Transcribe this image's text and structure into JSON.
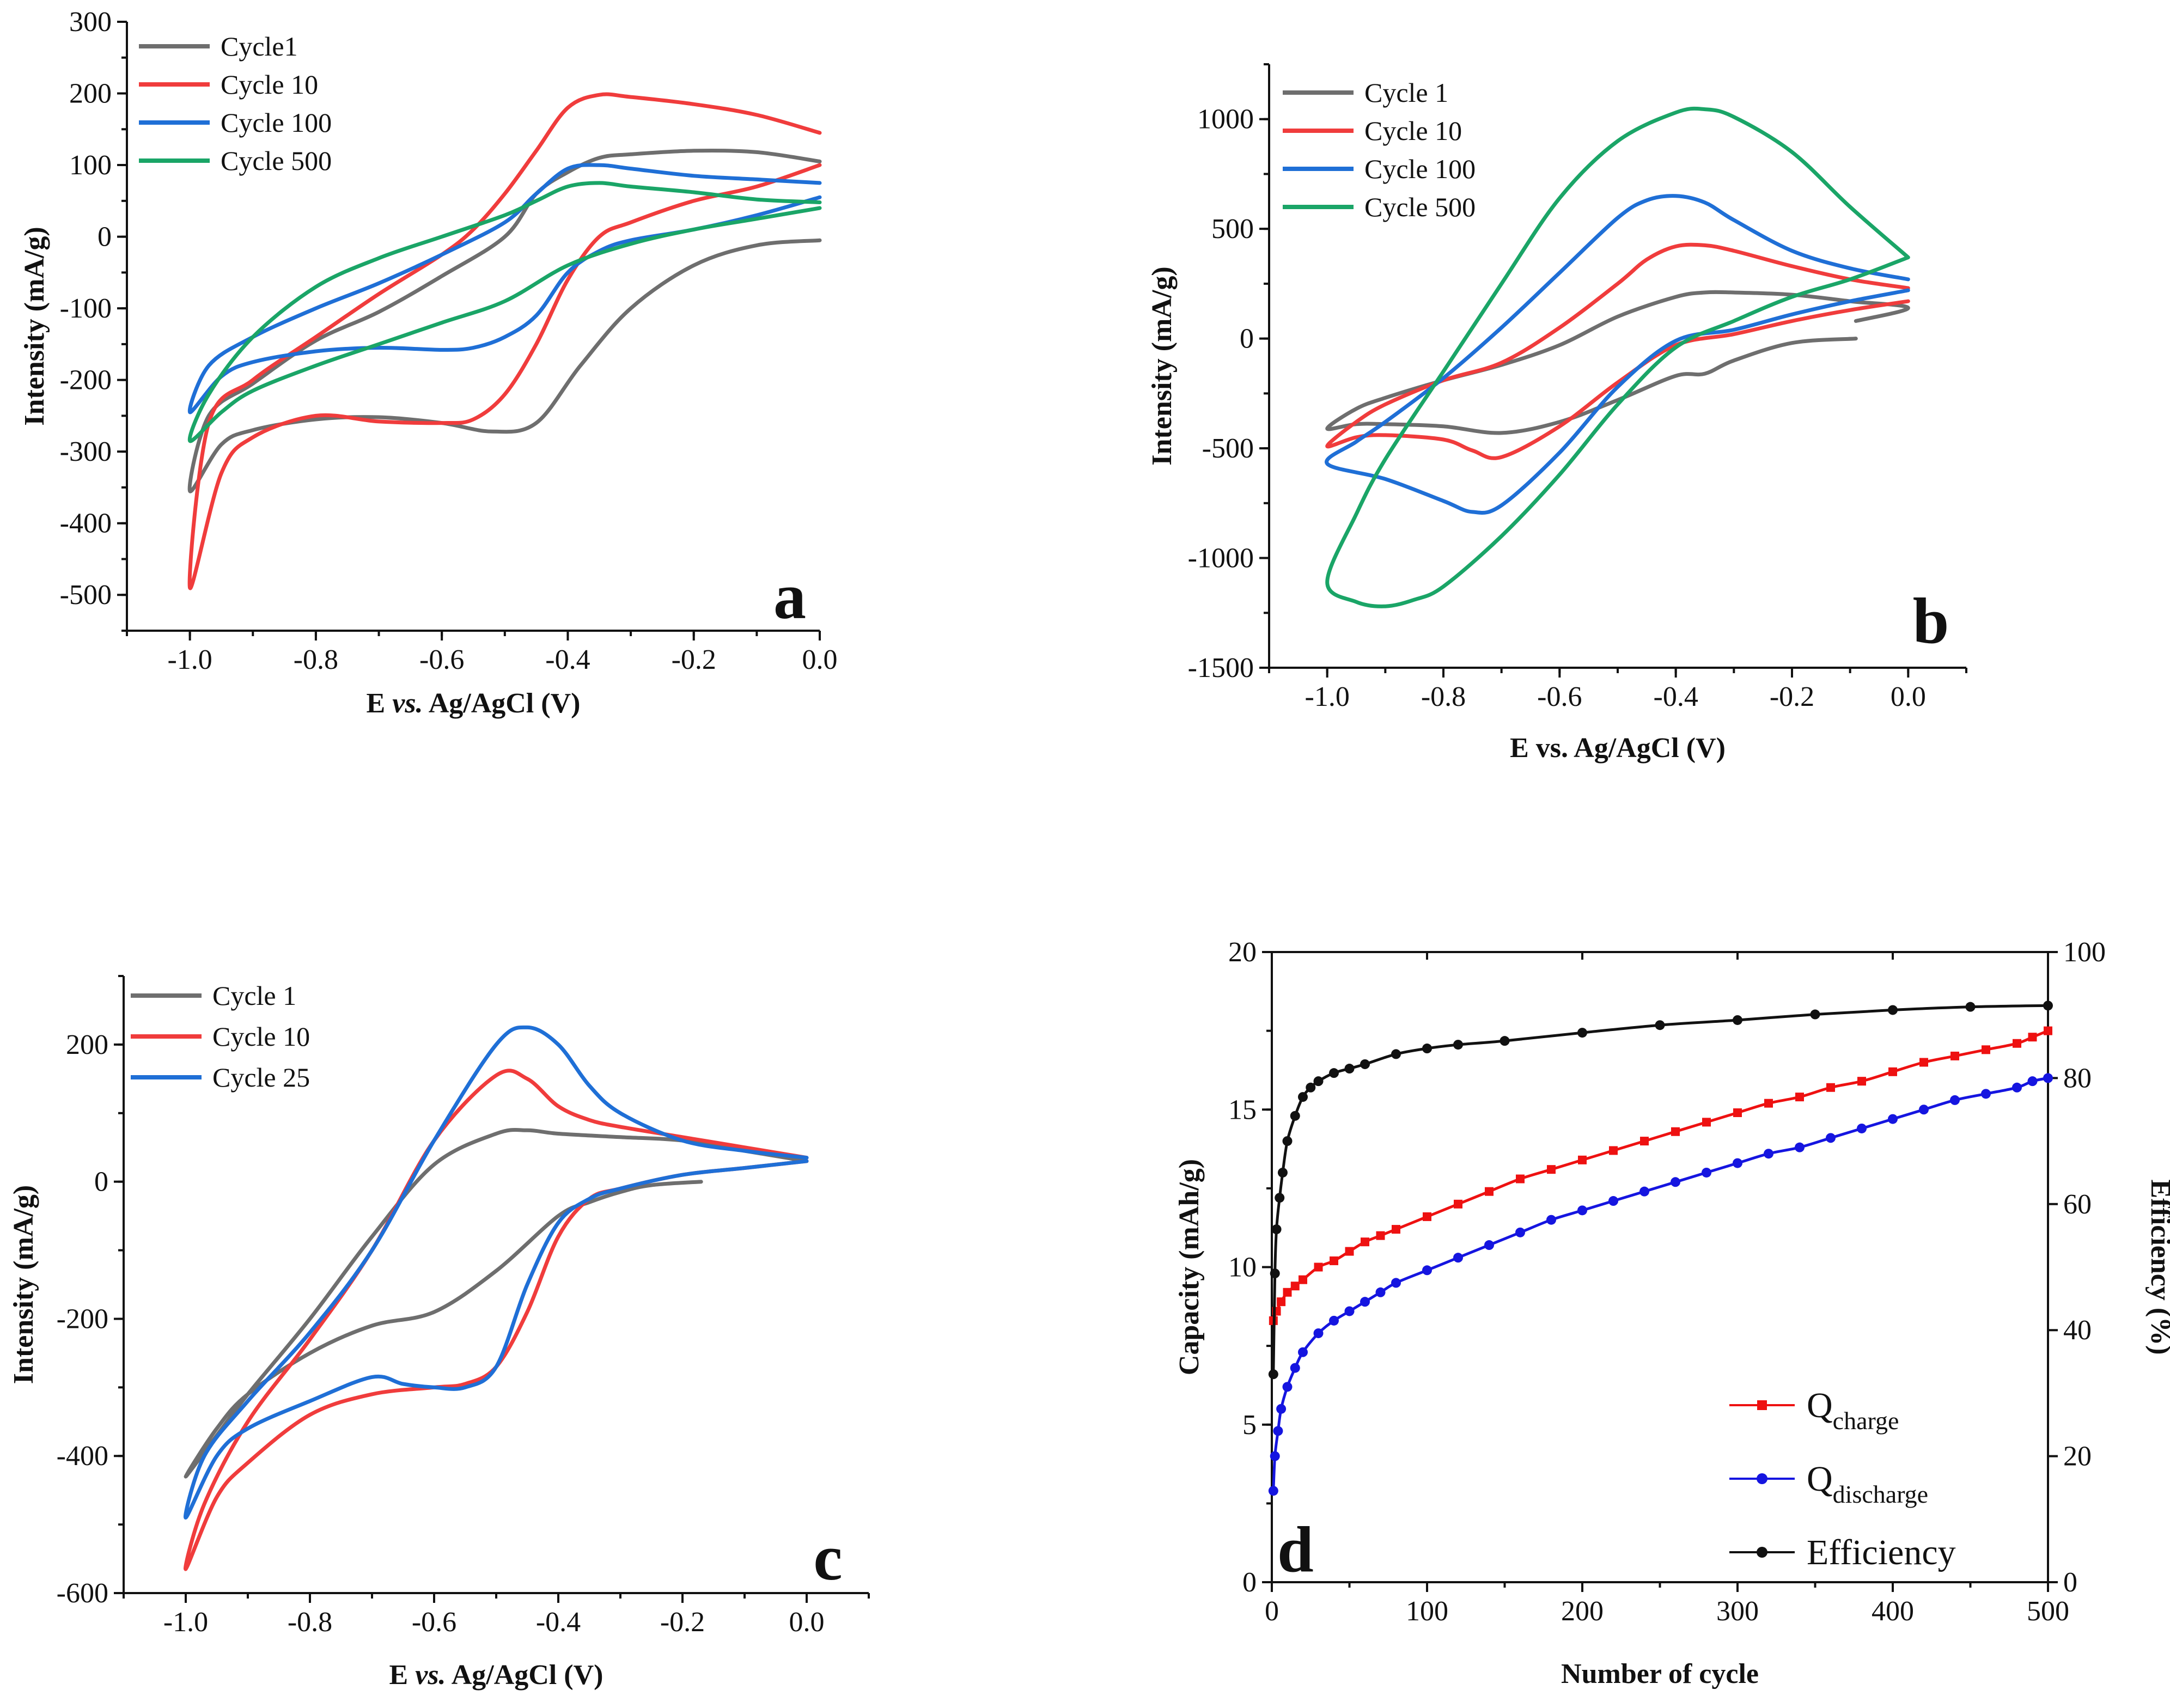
{
  "chart_data": [
    {
      "id": "a",
      "type": "line",
      "panel_label": "a",
      "xlabel_parts": [
        "E ",
        "vs.",
        " Ag/AgCl (V)"
      ],
      "ylabel": "Intensity (mA/g)",
      "xlim": [
        -1.1,
        0.0
      ],
      "ylim": [
        -550,
        300
      ],
      "xticks": [
        -1.0,
        -0.8,
        -0.6,
        -0.4,
        -0.2,
        0.0
      ],
      "xtick_labels": [
        "-1.0",
        "-0.8",
        "-0.6",
        "-0.4",
        "-0.2",
        "0.0"
      ],
      "yticks": [
        -500,
        -400,
        -300,
        -200,
        -100,
        0,
        100,
        200,
        300
      ],
      "ytick_labels": [
        "-500",
        "-400",
        "-300",
        "-200",
        "-100",
        "0",
        "100",
        "200",
        "300"
      ],
      "series": [
        {
          "name": "Cycle1",
          "color": "#6e6e6e",
          "x": [
            0.0,
            -0.1,
            -0.2,
            -0.3,
            -0.38,
            -0.45,
            -0.52,
            -0.6,
            -0.7,
            -0.8,
            -0.9,
            -0.95,
            -1.0,
            -0.97,
            -0.9,
            -0.8,
            -0.7,
            -0.6,
            -0.5,
            -0.45,
            -0.4,
            -0.35,
            -0.3,
            -0.2,
            -0.1,
            0.0
          ],
          "y": [
            -5,
            -12,
            -40,
            -100,
            -180,
            -260,
            -272,
            -260,
            -252,
            -255,
            -270,
            -290,
            -355,
            -250,
            -205,
            -145,
            -105,
            -55,
            0,
            60,
            90,
            110,
            115,
            120,
            118,
            105
          ]
        },
        {
          "name": "Cycle 10",
          "color": "#f03c3c",
          "x": [
            0.0,
            -0.1,
            -0.2,
            -0.3,
            -0.35,
            -0.4,
            -0.45,
            -0.5,
            -0.55,
            -0.6,
            -0.7,
            -0.8,
            -0.9,
            -0.95,
            -1.0,
            -0.97,
            -0.9,
            -0.8,
            -0.7,
            -0.6,
            -0.55,
            -0.5,
            -0.45,
            -0.4,
            -0.35,
            -0.3,
            -0.2,
            -0.1,
            0.0
          ],
          "y": [
            100,
            70,
            50,
            20,
            0,
            -60,
            -150,
            -220,
            -255,
            -260,
            -258,
            -250,
            -280,
            -330,
            -490,
            -260,
            -200,
            -140,
            -80,
            -25,
            10,
            60,
            120,
            180,
            198,
            195,
            185,
            170,
            145
          ]
        },
        {
          "name": "Cycle 100",
          "color": "#1f6fd6",
          "x": [
            0.0,
            -0.1,
            -0.2,
            -0.3,
            -0.35,
            -0.4,
            -0.45,
            -0.5,
            -0.55,
            -0.6,
            -0.7,
            -0.8,
            -0.9,
            -0.95,
            -1.0,
            -0.97,
            -0.9,
            -0.8,
            -0.7,
            -0.6,
            -0.5,
            -0.45,
            -0.4,
            -0.35,
            -0.3,
            -0.2,
            -0.1,
            0.0
          ],
          "y": [
            55,
            30,
            10,
            -5,
            -20,
            -50,
            -110,
            -140,
            -155,
            -158,
            -155,
            -160,
            -175,
            -195,
            -245,
            -180,
            -140,
            -100,
            -65,
            -25,
            20,
            60,
            95,
            100,
            95,
            85,
            80,
            75
          ]
        },
        {
          "name": "Cycle 500",
          "color": "#1aa567",
          "x": [
            0.0,
            -0.1,
            -0.2,
            -0.3,
            -0.4,
            -0.5,
            -0.6,
            -0.7,
            -0.8,
            -0.9,
            -0.95,
            -1.0,
            -0.97,
            -0.9,
            -0.8,
            -0.7,
            -0.6,
            -0.5,
            -0.45,
            -0.4,
            -0.35,
            -0.3,
            -0.2,
            -0.1,
            0.0
          ],
          "y": [
            40,
            25,
            10,
            -10,
            -40,
            -90,
            -120,
            -150,
            -180,
            -215,
            -245,
            -285,
            -220,
            -140,
            -70,
            -30,
            0,
            30,
            50,
            70,
            75,
            70,
            62,
            52,
            48
          ]
        }
      ]
    },
    {
      "id": "b",
      "type": "line",
      "panel_label": "b",
      "xlabel": "E vs. Ag/AgCl (V)",
      "ylabel": "Intensity (mA/g)",
      "xlim": [
        -1.1,
        0.1
      ],
      "ylim": [
        -1500,
        1250
      ],
      "xticks": [
        -1.0,
        -0.8,
        -0.6,
        -0.4,
        -0.2,
        0.0
      ],
      "xtick_labels": [
        "-1.0",
        "-0.8",
        "-0.6",
        "-0.4",
        "-0.2",
        "0.0"
      ],
      "yticks": [
        -1500,
        -1000,
        -500,
        0,
        500,
        1000
      ],
      "ytick_labels": [
        "-1500",
        "-1000",
        "-500",
        "0",
        "500",
        "1000"
      ],
      "series": [
        {
          "name": "Cycle 1",
          "color": "#6e6e6e",
          "x": [
            -0.09,
            -0.2,
            -0.3,
            -0.35,
            -0.4,
            -0.5,
            -0.6,
            -0.7,
            -0.8,
            -0.9,
            -0.95,
            -1.0,
            -0.95,
            -0.9,
            -0.8,
            -0.7,
            -0.6,
            -0.5,
            -0.4,
            -0.35,
            -0.3,
            -0.2,
            -0.1,
            0.0,
            -0.09
          ],
          "y": [
            0,
            -20,
            -100,
            -160,
            -170,
            -280,
            -380,
            -430,
            -400,
            -390,
            -390,
            -410,
            -320,
            -270,
            -190,
            -120,
            -30,
            100,
            190,
            210,
            210,
            200,
            170,
            140,
            80
          ]
        },
        {
          "name": "Cycle 10",
          "color": "#f03c3c",
          "x": [
            0.0,
            -0.1,
            -0.2,
            -0.3,
            -0.4,
            -0.5,
            -0.6,
            -0.7,
            -0.75,
            -0.8,
            -0.9,
            -0.95,
            -1.0,
            -0.95,
            -0.9,
            -0.8,
            -0.7,
            -0.6,
            -0.5,
            -0.45,
            -0.4,
            -0.35,
            -0.3,
            -0.2,
            -0.1,
            0.0
          ],
          "y": [
            170,
            130,
            80,
            20,
            -30,
            -200,
            -400,
            -540,
            -510,
            -460,
            -440,
            -450,
            -490,
            -380,
            -300,
            -190,
            -110,
            50,
            250,
            360,
            420,
            425,
            400,
            330,
            270,
            230
          ]
        },
        {
          "name": "Cycle 100",
          "color": "#1f6fd6",
          "x": [
            0.0,
            -0.1,
            -0.2,
            -0.3,
            -0.4,
            -0.5,
            -0.6,
            -0.7,
            -0.75,
            -0.8,
            -0.9,
            -1.0,
            -0.95,
            -0.9,
            -0.8,
            -0.7,
            -0.6,
            -0.5,
            -0.45,
            -0.4,
            -0.35,
            -0.3,
            -0.2,
            -0.1,
            0.0
          ],
          "y": [
            220,
            170,
            110,
            40,
            -10,
            -220,
            -520,
            -760,
            -790,
            -740,
            -640,
            -570,
            -470,
            -380,
            -180,
            50,
            300,
            550,
            630,
            650,
            620,
            540,
            400,
            320,
            270
          ]
        },
        {
          "name": "Cycle 500",
          "color": "#1aa567",
          "x": [
            0.0,
            -0.1,
            -0.2,
            -0.3,
            -0.4,
            -0.5,
            -0.6,
            -0.7,
            -0.8,
            -0.85,
            -0.9,
            -0.95,
            -1.0,
            -0.95,
            -0.9,
            -0.8,
            -0.7,
            -0.6,
            -0.5,
            -0.4,
            -0.35,
            -0.3,
            -0.2,
            -0.1,
            0.0
          ],
          "y": [
            370,
            270,
            190,
            80,
            -40,
            -300,
            -620,
            -900,
            -1130,
            -1190,
            -1220,
            -1200,
            -1110,
            -800,
            -550,
            -150,
            250,
            640,
            900,
            1030,
            1045,
            1010,
            850,
            600,
            370
          ]
        }
      ]
    },
    {
      "id": "c",
      "type": "line",
      "panel_label": "c",
      "xlabel_parts": [
        "E ",
        "vs.",
        " Ag/AgCl (V)"
      ],
      "ylabel": "Intensity (mA/g)",
      "xlim": [
        -1.1,
        0.1
      ],
      "ylim": [
        -600,
        300
      ],
      "xticks": [
        -1.0,
        -0.8,
        -0.6,
        -0.4,
        -0.2,
        0.0
      ],
      "xtick_labels": [
        "-1.0",
        "-0.8",
        "-0.6",
        "-0.4",
        "-0.2",
        "0.0"
      ],
      "yticks": [
        -600,
        -400,
        -200,
        0,
        200
      ],
      "ytick_labels": [
        "-600",
        "-400",
        "-200",
        "0",
        "200"
      ],
      "series": [
        {
          "name": "Cycle 1",
          "color": "#6e6e6e",
          "x": [
            -0.17,
            -0.25,
            -0.3,
            -0.35,
            -0.4,
            -0.5,
            -0.6,
            -0.7,
            -0.8,
            -0.9,
            -0.95,
            -1.0,
            -0.95,
            -0.9,
            -0.8,
            -0.7,
            -0.6,
            -0.5,
            -0.45,
            -0.4,
            -0.3,
            -0.2,
            -0.1,
            0.0
          ],
          "y": [
            0,
            -5,
            -15,
            -30,
            -50,
            -130,
            -190,
            -210,
            -250,
            -310,
            -360,
            -430,
            -370,
            -310,
            -200,
            -80,
            25,
            70,
            75,
            70,
            65,
            60,
            45,
            30
          ]
        },
        {
          "name": "Cycle 10",
          "color": "#f03c3c",
          "x": [
            0.0,
            -0.1,
            -0.2,
            -0.3,
            -0.35,
            -0.4,
            -0.45,
            -0.5,
            -0.55,
            -0.6,
            -0.7,
            -0.8,
            -0.9,
            -0.95,
            -1.0,
            -0.97,
            -0.9,
            -0.8,
            -0.7,
            -0.6,
            -0.5,
            -0.45,
            -0.4,
            -0.35,
            -0.3,
            -0.2,
            -0.1,
            0.0
          ],
          "y": [
            30,
            20,
            10,
            -10,
            -25,
            -80,
            -190,
            -270,
            -295,
            -300,
            -310,
            -340,
            -410,
            -460,
            -565,
            -470,
            -350,
            -230,
            -100,
            60,
            155,
            150,
            110,
            90,
            80,
            65,
            50,
            35
          ]
        },
        {
          "name": "Cycle 25",
          "color": "#1f6fd6",
          "x": [
            0.0,
            -0.1,
            -0.2,
            -0.3,
            -0.35,
            -0.4,
            -0.45,
            -0.5,
            -0.55,
            -0.6,
            -0.65,
            -0.7,
            -0.8,
            -0.9,
            -0.95,
            -1.0,
            -0.97,
            -0.9,
            -0.8,
            -0.7,
            -0.6,
            -0.5,
            -0.45,
            -0.4,
            -0.35,
            -0.3,
            -0.2,
            -0.1,
            0.0
          ],
          "y": [
            30,
            20,
            10,
            -10,
            -25,
            -60,
            -150,
            -270,
            -300,
            -300,
            -295,
            -285,
            -320,
            -360,
            -400,
            -490,
            -400,
            -320,
            -220,
            -100,
            60,
            200,
            225,
            200,
            140,
            100,
            60,
            45,
            35
          ]
        }
      ]
    },
    {
      "id": "d",
      "type": "scatter",
      "panel_label": "d",
      "xlabel": "Number of cycle",
      "ylabel_left": "Capacity (mAh/g)",
      "ylabel_right": "Efficiency (%)",
      "xlim": [
        0,
        500
      ],
      "ylim_left": [
        0,
        20
      ],
      "ylim_right": [
        0,
        100
      ],
      "xticks": [
        0,
        100,
        200,
        300,
        400,
        500
      ],
      "xtick_labels": [
        "0",
        "100",
        "200",
        "300",
        "400",
        "500"
      ],
      "yticks_left": [
        0,
        5,
        10,
        15,
        20
      ],
      "ytick_labels_left": [
        "0",
        "5",
        "10",
        "15",
        "20"
      ],
      "yticks_right": [
        0,
        20,
        40,
        60,
        80,
        100
      ],
      "ytick_labels_right": [
        "0",
        "20",
        "40",
        "60",
        "80",
        "100"
      ],
      "series": [
        {
          "name": "Q",
          "subscript": "charge",
          "axis": "left",
          "marker": "square",
          "color": "#ee1111",
          "x": [
            1,
            3,
            6,
            10,
            15,
            20,
            30,
            40,
            50,
            60,
            70,
            80,
            100,
            120,
            140,
            160,
            180,
            200,
            220,
            240,
            260,
            280,
            300,
            320,
            340,
            360,
            380,
            400,
            420,
            440,
            460,
            480,
            490,
            500
          ],
          "y": [
            8.3,
            8.6,
            8.9,
            9.2,
            9.4,
            9.6,
            10.0,
            10.2,
            10.5,
            10.8,
            11.0,
            11.2,
            11.6,
            12.0,
            12.4,
            12.8,
            13.1,
            13.4,
            13.7,
            14.0,
            14.3,
            14.6,
            14.9,
            15.2,
            15.4,
            15.7,
            15.9,
            16.2,
            16.5,
            16.7,
            16.9,
            17.1,
            17.3,
            17.5
          ]
        },
        {
          "name": "Q",
          "subscript": "discharge",
          "axis": "left",
          "marker": "circle",
          "color": "#1515e0",
          "x": [
            1,
            2,
            4,
            6,
            10,
            15,
            20,
            30,
            40,
            50,
            60,
            70,
            80,
            100,
            120,
            140,
            160,
            180,
            200,
            220,
            240,
            260,
            280,
            300,
            320,
            340,
            360,
            380,
            400,
            420,
            440,
            460,
            480,
            490,
            500
          ],
          "y": [
            2.9,
            4.0,
            4.8,
            5.5,
            6.2,
            6.8,
            7.3,
            7.9,
            8.3,
            8.6,
            8.9,
            9.2,
            9.5,
            9.9,
            10.3,
            10.7,
            11.1,
            11.5,
            11.8,
            12.1,
            12.4,
            12.7,
            13.0,
            13.3,
            13.6,
            13.8,
            14.1,
            14.4,
            14.7,
            15.0,
            15.3,
            15.5,
            15.7,
            15.9,
            16.0
          ]
        },
        {
          "name": "Efficiency",
          "axis": "right",
          "marker": "circle",
          "color": "#111111",
          "x": [
            1,
            2,
            3,
            5,
            7,
            10,
            15,
            20,
            25,
            30,
            40,
            50,
            60,
            80,
            100,
            120,
            150,
            200,
            250,
            300,
            350,
            400,
            450,
            500
          ],
          "y": [
            33,
            49,
            56,
            61,
            65,
            70,
            74,
            77,
            78.5,
            79.5,
            80.8,
            81.5,
            82.2,
            83.8,
            84.7,
            85.3,
            85.9,
            87.2,
            88.4,
            89.2,
            90.1,
            90.8,
            91.3,
            91.5
          ]
        }
      ]
    }
  ]
}
